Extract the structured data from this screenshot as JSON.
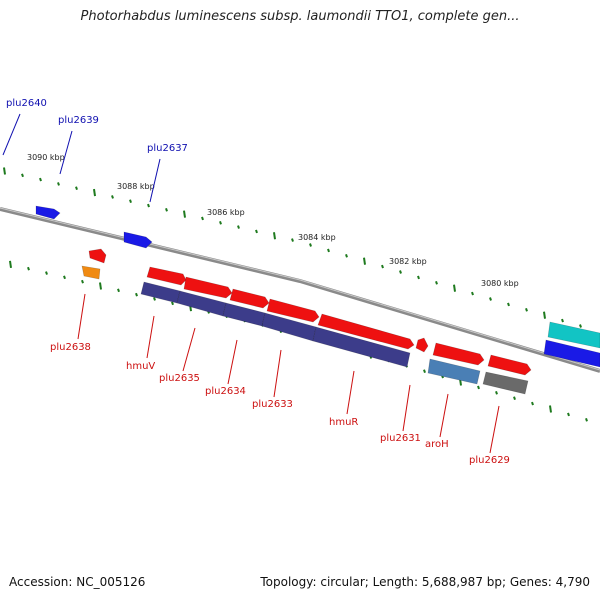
{
  "title": "Photorhabdus luminescens subsp. laumondii TTO1, complete gen...",
  "accession": "Accession: NC_005126",
  "summary": "Topology: circular; Length: 5,688,987 bp; Genes: 4,790",
  "colors": {
    "backbone": "#808080",
    "tick": "#1e7a1e",
    "top_strand_label": "#1010b0",
    "bottom_strand_label": "#cc1010",
    "red": "#ee1111",
    "navy": "#3c3c8a",
    "blue": "#1a1ae6",
    "steel": "#4a7fb5",
    "gray": "#6a6a6a",
    "teal": "#12c4c4",
    "orange": "#f08a12"
  },
  "scale_labels": [
    "3090 kbp",
    "3088 kbp",
    "3086 kbp",
    "3084 kbp",
    "3082 kbp",
    "3080 kbp"
  ],
  "genes": [
    {
      "name": "plu2640",
      "strand": "top",
      "labeled": true
    },
    {
      "name": "plu2639",
      "strand": "top",
      "labeled": true
    },
    {
      "name": "plu2637",
      "strand": "top",
      "labeled": true
    },
    {
      "name": "plu2638",
      "strand": "bottom",
      "labeled": true
    },
    {
      "name": "hmuV",
      "strand": "bottom",
      "labeled": true
    },
    {
      "name": "plu2635",
      "strand": "bottom",
      "labeled": true
    },
    {
      "name": "plu2634",
      "strand": "bottom",
      "labeled": true
    },
    {
      "name": "plu2633",
      "strand": "bottom",
      "labeled": true
    },
    {
      "name": "hmuR",
      "strand": "bottom",
      "labeled": true
    },
    {
      "name": "plu2631",
      "strand": "bottom",
      "labeled": true
    },
    {
      "name": "aroH",
      "strand": "bottom",
      "labeled": true
    },
    {
      "name": "plu2629",
      "strand": "bottom",
      "labeled": true
    }
  ]
}
